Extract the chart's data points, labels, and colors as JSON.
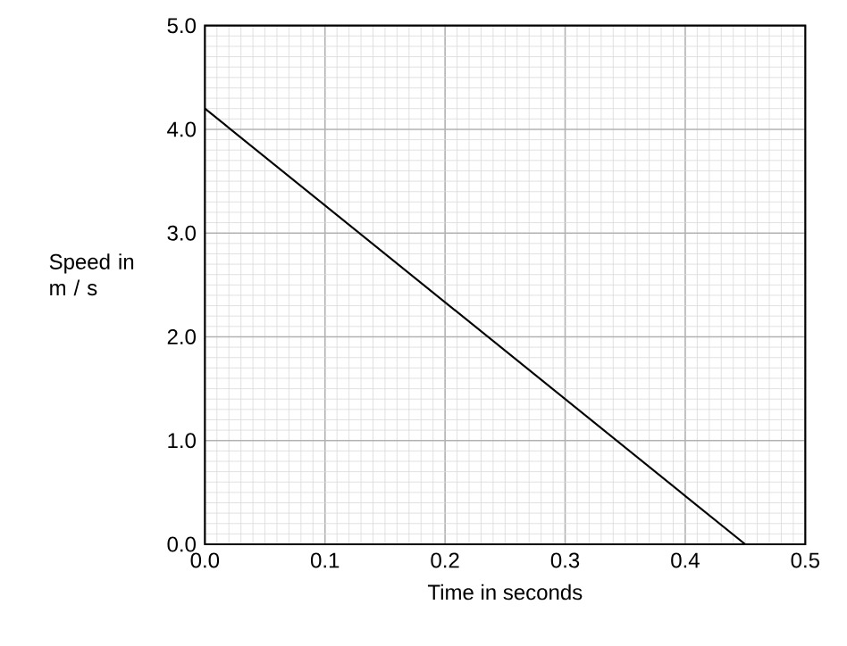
{
  "chart_data": {
    "type": "line",
    "xlabel": "Time in seconds",
    "ylabel": "Speed in m / s",
    "x": [
      0,
      0.45
    ],
    "values": [
      4.2,
      0
    ],
    "color": "#000000",
    "xlim": [
      0,
      0.5
    ],
    "ylim": [
      0,
      5
    ],
    "xticks": [
      {
        "value": 0,
        "label": "0.0"
      },
      {
        "value": 0.1,
        "label": "0.1"
      },
      {
        "value": 0.2,
        "label": "0.2"
      },
      {
        "value": 0.3,
        "label": "0.3"
      },
      {
        "value": 0.4,
        "label": "0.4"
      },
      {
        "value": 0.5,
        "label": "0.5"
      }
    ],
    "yticks": [
      {
        "value": 0,
        "label": "0.0"
      },
      {
        "value": 1,
        "label": "1.0"
      },
      {
        "value": 2,
        "label": "2.0"
      },
      {
        "value": 3,
        "label": "3.0"
      },
      {
        "value": 4,
        "label": "4.0"
      },
      {
        "value": 5,
        "label": "5.0"
      }
    ],
    "grid": true,
    "marker": "none",
    "line_style": "solid"
  }
}
